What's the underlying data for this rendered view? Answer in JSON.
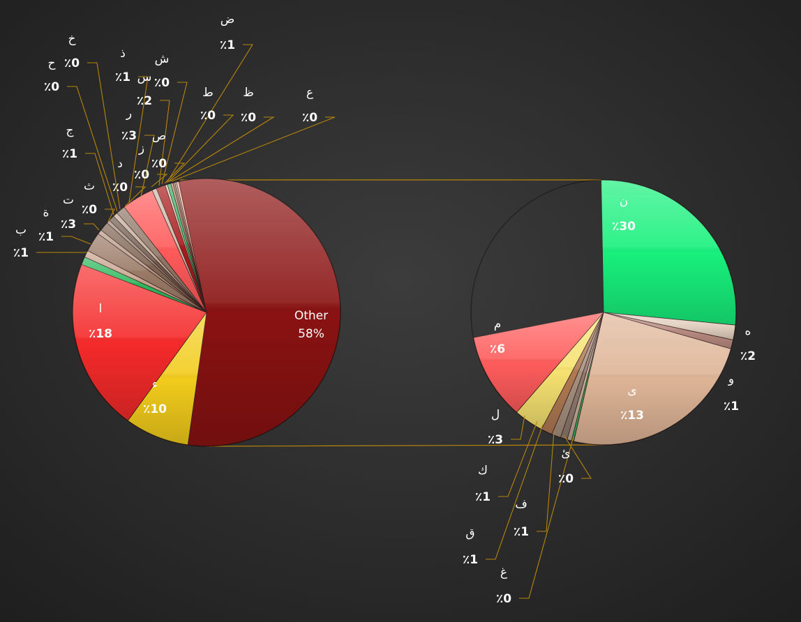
{
  "chart_data": {
    "type": "pie",
    "subtype": "pie-of-pie",
    "value_suffix": "٪",
    "main_pie": {
      "slices": [
        {
          "label": "Other",
          "value": 58,
          "display": "58%",
          "color": "#8a1212"
        },
        {
          "label": "ء",
          "value": 10,
          "display": "10",
          "color": "#f2cc1c"
        },
        {
          "label": "ا",
          "value": 18,
          "display": "18",
          "color": "#f52a2a"
        },
        {
          "label": "ب",
          "value": 1,
          "display": "1",
          "color": "#2eb85c"
        },
        {
          "label": "ة",
          "value": 1,
          "display": "1",
          "color": "#c8a48e"
        },
        {
          "label": "ت",
          "value": 3,
          "display": "3",
          "color": "#9a7a66"
        },
        {
          "label": "ث",
          "value": 0,
          "display": "0",
          "color": "#b89a86"
        },
        {
          "label": "ج",
          "value": 1,
          "display": "1",
          "color": "#7e6452"
        },
        {
          "label": "ح",
          "value": 0,
          "display": "0",
          "color": "#a08a7a"
        },
        {
          "label": "خ",
          "value": 0,
          "display": "0",
          "color": "#6e5a4c"
        },
        {
          "label": "د",
          "value": 0,
          "display": "0",
          "color": "#c4aa96"
        },
        {
          "label": "ذ",
          "value": 1,
          "display": "1",
          "color": "#8e7666"
        },
        {
          "label": "ر",
          "value": 3,
          "display": "3",
          "color": "#ff5a5a"
        },
        {
          "label": "ز",
          "value": 0,
          "display": "0",
          "color": "#d0b8a6"
        },
        {
          "label": "س",
          "value": 2,
          "display": "2",
          "color": "#a81a1a"
        },
        {
          "label": "ش",
          "value": 0,
          "display": "0",
          "color": "#e0c8b6"
        },
        {
          "label": "ص",
          "value": 0,
          "display": "0",
          "color": "#2eb85c"
        },
        {
          "label": "ض",
          "value": 1,
          "display": "1",
          "color": "#b8866e"
        },
        {
          "label": "ط",
          "value": 0,
          "display": "0",
          "color": "#a07662"
        },
        {
          "label": "ظ",
          "value": 0,
          "display": "0",
          "color": "#c8b09e"
        },
        {
          "label": "ع",
          "value": 0,
          "display": "0",
          "color": "#ffb090"
        }
      ]
    },
    "secondary_pie": {
      "slices": [
        {
          "label": "ن",
          "value": 30,
          "display": "30",
          "color": "#18f07c"
        },
        {
          "label": "ه",
          "value": 2,
          "display": "2",
          "color": "#e2d0c0"
        },
        {
          "label": "و",
          "value": 1,
          "display": "1",
          "color": "#b88a80"
        },
        {
          "label": "ى",
          "value": 13,
          "display": "13",
          "color": "#deb496"
        },
        {
          "label": "ئ",
          "value": 0,
          "display": "0",
          "color": "#2eb85c"
        },
        {
          "label": "غ",
          "value": 0,
          "display": "0",
          "color": "#c2aa98"
        },
        {
          "label": "ف",
          "value": 1,
          "display": "1",
          "color": "#8e7a6e"
        },
        {
          "label": "ق",
          "value": 1,
          "display": "1",
          "color": "#a6907e"
        },
        {
          "label": "ك",
          "value": 1,
          "display": "1",
          "color": "#b07a52"
        },
        {
          "label": "ل",
          "value": 3,
          "display": "3",
          "color": "#f6e270"
        },
        {
          "label": "م",
          "value": 6,
          "display": "6",
          "color": "#ff5c5c"
        }
      ]
    },
    "connector_color": "#b8860b",
    "background": "#2c2c2c",
    "legend": "none"
  }
}
